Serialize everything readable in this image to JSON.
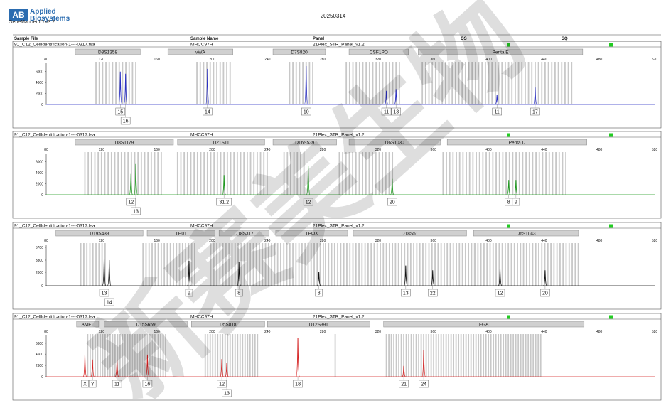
{
  "header": {
    "logo_mark": "AB",
    "logo_line1": "Applied",
    "logo_line2": "Biosystems",
    "product": "GeneMapper ID v3.2",
    "date": "20250314"
  },
  "columns": {
    "sample_file": "Sample File",
    "sample_name": "Sample Name",
    "panel": "Panel",
    "os": "OS",
    "sq": "SQ"
  },
  "watermark": "新赛美生物",
  "colors": {
    "blue": "#2a2fc4",
    "green": "#1e9a1e",
    "black": "#111111",
    "red": "#d42020",
    "bin": "#c8c8c8",
    "status": "#22cc22"
  },
  "chart_data": [
    {
      "type": "line",
      "dye": "blue",
      "sample_file": "91_C12_CellIdentification-1----0317.fsa",
      "sample_name": "MHCC97H",
      "panel": "21Plex_STR_Panel_v1.2",
      "x_ticks": [
        80,
        120,
        160,
        200,
        240,
        280,
        320,
        360,
        400,
        440,
        480,
        520
      ],
      "xlim": [
        80,
        520
      ],
      "y_ticks": [
        "0",
        "2000",
        "4000",
        "6000"
      ],
      "ylim": [
        0,
        7000
      ],
      "markers": [
        {
          "name": "D3S1358",
          "start": 101,
          "end": 148
        },
        {
          "name": "vWA",
          "start": 168,
          "end": 215
        },
        {
          "name": "D7S820",
          "start": 244,
          "end": 282
        },
        {
          "name": "CSF1PO",
          "start": 299,
          "end": 342
        },
        {
          "name": "Penta E",
          "start": 349,
          "end": 468
        }
      ],
      "bins": [
        [
          116,
          146
        ],
        [
          189,
          214
        ],
        [
          256,
          273
        ],
        [
          297,
          336
        ],
        [
          352,
          461
        ]
      ],
      "peaks": [
        {
          "x": 133.6,
          "height": 6000,
          "allele": "15"
        },
        {
          "x": 137.4,
          "height": 5600,
          "allele": "16"
        },
        {
          "x": 196.6,
          "height": 6500,
          "allele": "14"
        },
        {
          "x": 268,
          "height": 7000,
          "allele": "10"
        },
        {
          "x": 326,
          "height": 2500,
          "allele": "11"
        },
        {
          "x": 333,
          "height": 2800,
          "allele": "13"
        },
        {
          "x": 406,
          "height": 1800,
          "allele": "11"
        },
        {
          "x": 433.6,
          "height": 3100,
          "allele": "17"
        }
      ]
    },
    {
      "type": "line",
      "dye": "green",
      "sample_file": "91_C12_CellIdentification-1----0317.fsa",
      "sample_name": "MHCC97H",
      "panel": "21Plex_STR_Panel_v1.2",
      "x_ticks": [
        80,
        120,
        160,
        200,
        240,
        280,
        320,
        360,
        400,
        440,
        480,
        520
      ],
      "xlim": [
        80,
        520
      ],
      "y_ticks": [
        "0",
        "2000",
        "4000",
        "6000"
      ],
      "ylim": [
        0,
        7000
      ],
      "markers": [
        {
          "name": "D8S1179",
          "start": 101,
          "end": 172
        },
        {
          "name": "D21S11",
          "start": 175,
          "end": 238
        },
        {
          "name": "D16S539",
          "start": 244,
          "end": 290
        },
        {
          "name": "D6S1030",
          "start": 299,
          "end": 365
        },
        {
          "name": "Penta D",
          "start": 370,
          "end": 471
        }
      ],
      "bins": [
        [
          108,
          164
        ],
        [
          175,
          242
        ],
        [
          252,
          268
        ],
        [
          292,
          332
        ],
        [
          367,
          458
        ]
      ],
      "peaks": [
        {
          "x": 141.3,
          "height": 3800,
          "allele": "12"
        },
        {
          "x": 144.8,
          "height": 5600,
          "allele": "13"
        },
        {
          "x": 208.6,
          "height": 3600,
          "allele": "31.2"
        },
        {
          "x": 269.5,
          "height": 5200,
          "allele": "12"
        },
        {
          "x": 330.2,
          "height": 2900,
          "allele": "20"
        },
        {
          "x": 414.5,
          "height": 2700,
          "allele": "8"
        },
        {
          "x": 419.7,
          "height": 2700,
          "allele": "9"
        }
      ]
    },
    {
      "type": "line",
      "dye": "black",
      "sample_file": "91_C12_CellIdentification-1----0317.fsa",
      "sample_name": "MHCC97H",
      "panel": "21Plex_STR_Panel_v1.2",
      "x_ticks": [
        80,
        120,
        160,
        200,
        240,
        280,
        320,
        360,
        400,
        440,
        480,
        520
      ],
      "xlim": [
        80,
        520
      ],
      "y_ticks": [
        "0",
        "2000",
        "3800",
        "5700"
      ],
      "ylim": [
        0,
        5700
      ],
      "markers": [
        {
          "name": "D19S433",
          "start": 87,
          "end": 150
        },
        {
          "name": "TH01",
          "start": 153,
          "end": 202
        },
        {
          "name": "D18S317",
          "start": 205,
          "end": 241
        },
        {
          "name": "TPOX",
          "start": 246,
          "end": 298
        },
        {
          "name": "D18S51",
          "start": 302,
          "end": 384
        },
        {
          "name": "D6S1043",
          "start": 389,
          "end": 465
        }
      ],
      "bins": [
        [
          105,
          124
        ],
        [
          150,
          189
        ],
        [
          199,
          282
        ],
        [
          282,
          390
        ],
        [
          390,
          465
        ]
      ],
      "peaks": [
        {
          "x": 121.9,
          "height": 4000,
          "allele": "13"
        },
        {
          "x": 125.6,
          "height": 3800,
          "allele": "14"
        },
        {
          "x": 183.3,
          "height": 3700,
          "allele": "9"
        },
        {
          "x": 219.4,
          "height": 3500,
          "allele": "8"
        },
        {
          "x": 277.2,
          "height": 2100,
          "allele": "8"
        },
        {
          "x": 340,
          "height": 3000,
          "allele": "13"
        },
        {
          "x": 359.5,
          "height": 2300,
          "allele": "22"
        },
        {
          "x": 408.2,
          "height": 2500,
          "allele": "12"
        },
        {
          "x": 440.8,
          "height": 2300,
          "allele": "20"
        }
      ]
    },
    {
      "type": "line",
      "dye": "red",
      "sample_file": "91_C12_CellIdentification-1----0317.fsa",
      "sample_name": "MHCC97H",
      "panel": "21Plex_STR_Panel_v1.2",
      "x_ticks": [
        80,
        120,
        160,
        200,
        240,
        280,
        320,
        360,
        400,
        440,
        480,
        520
      ],
      "xlim": [
        80,
        520
      ],
      "y_ticks": [
        "0",
        "2300",
        "4600",
        "6800"
      ],
      "ylim": [
        0,
        7800
      ],
      "markers": [
        {
          "name": "AMEL",
          "start": 102,
          "end": 118
        },
        {
          "name": "D15S659",
          "start": 122,
          "end": 182
        },
        {
          "name": "D5S818",
          "start": 185,
          "end": 238
        },
        {
          "name": "D12S391",
          "start": 240,
          "end": 314
        },
        {
          "name": "FGA",
          "start": 324,
          "end": 469
        }
      ],
      "bins": [
        [
          110,
          160
        ],
        [
          161,
          168
        ],
        [
          195,
          233
        ],
        [
          289,
          290
        ],
        [
          326,
          439
        ]
      ],
      "peaks": [
        {
          "x": 108,
          "height": 4500,
          "allele": "X"
        },
        {
          "x": 113.5,
          "height": 3500,
          "allele": "Y"
        },
        {
          "x": 131.2,
          "height": 3500,
          "allele": "11"
        },
        {
          "x": 153.2,
          "height": 4500,
          "allele": "16"
        },
        {
          "x": 207,
          "height": 3600,
          "allele": "12"
        },
        {
          "x": 210.6,
          "height": 2800,
          "allele": "13"
        },
        {
          "x": 262,
          "height": 7800,
          "allele": "18"
        },
        {
          "x": 338.6,
          "height": 2200,
          "allele": "21"
        },
        {
          "x": 353,
          "height": 5400,
          "allele": "24"
        }
      ]
    }
  ]
}
